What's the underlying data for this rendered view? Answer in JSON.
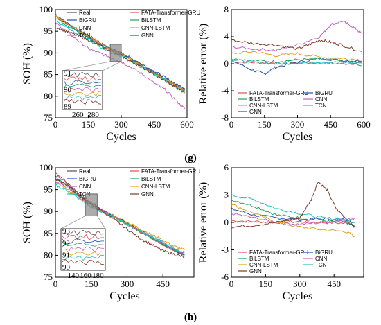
{
  "chart_data": [
    {
      "id": "g-soh",
      "type": "line",
      "xlabel": "Cycles",
      "ylabel": "SOH (%)",
      "xlim": [
        0,
        600
      ],
      "ylim": [
        75,
        100
      ],
      "xticks": [
        0,
        150,
        300,
        450,
        600
      ],
      "yticks": [
        75,
        80,
        85,
        90,
        95,
        100
      ],
      "legend": [
        "Real",
        "FATA-Transformer-GRU",
        "BiGRU",
        "BiLSTM",
        "CNN",
        "CNN-LSTM",
        "TCN",
        "GNN"
      ],
      "inset": {
        "xticks": [
          260,
          280
        ],
        "yticks": [
          89,
          90,
          91
        ]
      },
      "series": [
        {
          "name": "Real",
          "color": "#6b4a4a",
          "x": [
            0,
            50,
            100,
            150,
            200,
            250,
            300,
            350,
            400,
            450,
            500,
            550,
            590
          ],
          "y": [
            99,
            97,
            95.5,
            94,
            92.5,
            91,
            90,
            88.5,
            87,
            85.5,
            84,
            82.5,
            81.5
          ]
        },
        {
          "name": "FATA-Transformer-GRU",
          "color": "#e05050",
          "x": [
            0,
            50,
            100,
            150,
            200,
            250,
            300,
            350,
            400,
            450,
            500,
            550,
            590
          ],
          "y": [
            98.8,
            97,
            95.3,
            93.8,
            92.3,
            90.9,
            89.8,
            88.4,
            86.9,
            85.4,
            84,
            82.5,
            81.6
          ]
        },
        {
          "name": "BiGRU",
          "color": "#1f4fb0",
          "x": [
            0,
            50,
            100,
            150,
            200,
            250,
            300,
            350,
            400,
            450,
            500,
            550,
            590
          ],
          "y": [
            98.5,
            96.8,
            95.2,
            93.7,
            92.2,
            91,
            90,
            88.6,
            87.2,
            85.8,
            84.3,
            82.8,
            81.8
          ]
        },
        {
          "name": "BiLSTM",
          "color": "#20a060",
          "x": [
            0,
            50,
            100,
            150,
            200,
            250,
            300,
            350,
            400,
            450,
            500,
            550,
            590
          ],
          "y": [
            98.2,
            96.5,
            95,
            93.4,
            92,
            90.6,
            89.6,
            88.2,
            86.8,
            85.2,
            83.8,
            82.2,
            81.2
          ]
        },
        {
          "name": "CNN",
          "color": "#c060c0",
          "x": [
            0,
            50,
            100,
            150,
            200,
            250,
            300,
            350,
            400,
            450,
            500,
            550,
            590
          ],
          "y": [
            97,
            95,
            93,
            91,
            90,
            89,
            88,
            86.5,
            85,
            83,
            81.5,
            79,
            77
          ]
        },
        {
          "name": "CNN-LSTM",
          "color": "#e0a020",
          "x": [
            0,
            50,
            100,
            150,
            200,
            250,
            300,
            350,
            400,
            450,
            500,
            550,
            590
          ],
          "y": [
            98.6,
            96.9,
            95.4,
            93.9,
            92.4,
            90.9,
            89.7,
            88.3,
            86.8,
            85.3,
            83.9,
            82.4,
            81.4
          ]
        },
        {
          "name": "TCN",
          "color": "#20c0c0",
          "x": [
            0,
            50,
            100,
            150,
            200,
            250,
            300,
            350,
            400,
            450,
            500,
            550,
            590
          ],
          "y": [
            97.5,
            96,
            94.5,
            93,
            91.5,
            90.2,
            89.2,
            87.9,
            86.5,
            85,
            83.6,
            82,
            81
          ]
        },
        {
          "name": "GNN",
          "color": "#7a3a2a",
          "x": [
            0,
            50,
            100,
            150,
            200,
            250,
            300,
            350,
            400,
            450,
            500,
            550,
            590
          ],
          "y": [
            96,
            95,
            94,
            93,
            91.8,
            90.5,
            89.5,
            88,
            86.5,
            85,
            83.5,
            82,
            80.8
          ]
        }
      ]
    },
    {
      "id": "g-err",
      "type": "line",
      "xlabel": "Cycles",
      "ylabel": "Relative error (%)",
      "xlim": [
        0,
        600
      ],
      "ylim": [
        -8,
        8
      ],
      "xticks": [
        0,
        150,
        300,
        450,
        600
      ],
      "yticks": [
        -8,
        -4,
        0,
        4,
        8
      ],
      "legend": [
        "FATA-Transformer-GRU",
        "BiGRU",
        "BiLSTM",
        "CNN",
        "CNN-LSTM",
        "TCN",
        "GNN"
      ],
      "series": [
        {
          "name": "FATA-Transformer-GRU",
          "color": "#e05050",
          "x": [
            0,
            100,
            200,
            300,
            400,
            500,
            590
          ],
          "y": [
            0.3,
            0.2,
            0.1,
            0.2,
            0.1,
            0,
            0.1
          ]
        },
        {
          "name": "BiGRU",
          "color": "#1f4fb0",
          "x": [
            0,
            100,
            150,
            200,
            300,
            400,
            500,
            590
          ],
          "y": [
            0.5,
            -1,
            -1.5,
            -0.5,
            0.2,
            0.8,
            0.5,
            0.4
          ]
        },
        {
          "name": "BiLSTM",
          "color": "#20a060",
          "x": [
            0,
            100,
            200,
            300,
            400,
            500,
            590
          ],
          "y": [
            0.8,
            0.5,
            0.3,
            0.6,
            0.7,
            0.4,
            -0.3
          ]
        },
        {
          "name": "CNN",
          "color": "#c060c0",
          "x": [
            0,
            100,
            200,
            300,
            400,
            450,
            500,
            550,
            590
          ],
          "y": [
            2.5,
            2.2,
            2,
            2.8,
            4,
            5.8,
            6.3,
            5.5,
            4.5
          ]
        },
        {
          "name": "CNN-LSTM",
          "color": "#e0a020",
          "x": [
            0,
            100,
            200,
            300,
            400,
            500,
            590
          ],
          "y": [
            1.5,
            1.8,
            1.2,
            1.5,
            1,
            0.8,
            0.6
          ]
        },
        {
          "name": "TCN",
          "color": "#20c0c0",
          "x": [
            0,
            100,
            200,
            300,
            400,
            500,
            590
          ],
          "y": [
            0.6,
            0.2,
            0,
            0.1,
            0.3,
            0.2,
            0.2
          ]
        },
        {
          "name": "GNN",
          "color": "#7a3a2a",
          "x": [
            0,
            100,
            200,
            300,
            350,
            400,
            450,
            500,
            590
          ],
          "y": [
            3.5,
            3,
            2.8,
            2.2,
            2.8,
            3.5,
            3.2,
            2.8,
            1.8
          ]
        }
      ]
    },
    {
      "id": "h-soh",
      "type": "line",
      "xlabel": "Cycles",
      "ylabel": "SOH (%)",
      "xlim": [
        0,
        580
      ],
      "ylim": [
        75,
        100
      ],
      "xticks": [
        0,
        150,
        300,
        450
      ],
      "yticks": [
        75,
        80,
        85,
        90,
        95,
        100
      ],
      "legend": [
        "Real",
        "FATA-Transformer-GRU",
        "BiGRU",
        "BiLSTM",
        "CNN",
        "CNN-LSTM",
        "TCN",
        "GNN"
      ],
      "inset": {
        "xticks": [
          140,
          160,
          180
        ],
        "yticks": [
          90,
          91,
          92,
          93
        ]
      },
      "series": [
        {
          "name": "Real",
          "color": "#6b4a4a",
          "x": [
            0,
            50,
            100,
            150,
            200,
            250,
            300,
            350,
            400,
            450,
            500,
            540
          ],
          "y": [
            99,
            96.5,
            94,
            92,
            90.3,
            88.8,
            87.3,
            85.5,
            84,
            82.5,
            81,
            80
          ]
        },
        {
          "name": "FATA-Transformer-GRU",
          "color": "#e05050",
          "x": [
            0,
            50,
            100,
            150,
            200,
            250,
            300,
            350,
            400,
            450,
            500,
            540
          ],
          "y": [
            98.8,
            96.3,
            93.9,
            91.9,
            90.2,
            88.7,
            87.2,
            85.5,
            84,
            82.4,
            81,
            80.1
          ]
        },
        {
          "name": "BiGRU",
          "color": "#1f4fb0",
          "x": [
            0,
            50,
            100,
            150,
            200,
            250,
            300,
            350,
            400,
            450,
            500,
            540
          ],
          "y": [
            98,
            96,
            93.8,
            91.8,
            90.2,
            88.8,
            87.4,
            85.8,
            84.3,
            82.8,
            81.2,
            80.2
          ]
        },
        {
          "name": "BiLSTM",
          "color": "#20a060",
          "x": [
            0,
            50,
            100,
            150,
            200,
            250,
            300,
            350,
            400,
            450,
            500,
            540
          ],
          "y": [
            97.5,
            95.8,
            93.5,
            91.6,
            90,
            88.6,
            87.2,
            85.6,
            84.1,
            82.6,
            81.1,
            80.3
          ]
        },
        {
          "name": "CNN",
          "color": "#c060c0",
          "x": [
            0,
            50,
            100,
            150,
            200,
            250,
            300,
            350,
            400,
            450,
            500,
            540
          ],
          "y": [
            97,
            95.5,
            93.2,
            91.5,
            90,
            88.5,
            87,
            85.6,
            84.2,
            82.8,
            81.5,
            80.5
          ]
        },
        {
          "name": "CNN-LSTM",
          "color": "#e0a020",
          "x": [
            0,
            50,
            100,
            150,
            200,
            250,
            300,
            350,
            400,
            450,
            500,
            540
          ],
          "y": [
            96.5,
            95.2,
            93,
            91.3,
            90,
            88.8,
            87.6,
            86.2,
            84.8,
            83.4,
            82,
            81.2
          ]
        },
        {
          "name": "TCN",
          "color": "#20c0c0",
          "x": [
            0,
            50,
            100,
            150,
            200,
            250,
            300,
            350,
            400,
            450,
            500,
            540
          ],
          "y": [
            96,
            94.8,
            92.8,
            91,
            89.7,
            88.4,
            87.1,
            85.8,
            84.3,
            82.9,
            81.5,
            80.6
          ]
        },
        {
          "name": "GNN",
          "color": "#7a3a2a",
          "x": [
            0,
            50,
            100,
            150,
            200,
            250,
            300,
            350,
            400,
            450,
            500,
            540
          ],
          "y": [
            97.5,
            96,
            93.5,
            91.5,
            90,
            88,
            86,
            84,
            82.5,
            81,
            80.2,
            79.6
          ]
        }
      ]
    },
    {
      "id": "h-err",
      "type": "line",
      "xlabel": "Cycles",
      "ylabel": "Relative error (%)",
      "xlim": [
        0,
        580
      ],
      "ylim": [
        -6,
        6
      ],
      "xticks": [
        0,
        150,
        300,
        450
      ],
      "yticks": [
        -6,
        -3,
        0,
        3,
        6
      ],
      "legend": [
        "FATA-Transformer-GRU",
        "BiGRU",
        "BiLSTM",
        "CNN",
        "CNN-LSTM",
        "TCN",
        "GNN"
      ],
      "series": [
        {
          "name": "FATA-Transformer-GRU",
          "color": "#e05050",
          "x": [
            0,
            100,
            200,
            300,
            400,
            500,
            540
          ],
          "y": [
            0.2,
            0.1,
            0,
            0.1,
            0,
            -0.1,
            0
          ]
        },
        {
          "name": "BiGRU",
          "color": "#1f4fb0",
          "x": [
            0,
            100,
            200,
            300,
            400,
            500,
            540
          ],
          "y": [
            1.5,
            0.8,
            0.5,
            0.3,
            0.4,
            0.3,
            -0.5
          ]
        },
        {
          "name": "BiLSTM",
          "color": "#20a060",
          "x": [
            0,
            100,
            200,
            300,
            400,
            500,
            540
          ],
          "y": [
            2.5,
            1.8,
            0.8,
            0.5,
            0.2,
            0,
            -0.5
          ]
        },
        {
          "name": "CNN",
          "color": "#c060c0",
          "x": [
            0,
            100,
            200,
            300,
            400,
            500,
            540
          ],
          "y": [
            1,
            0.5,
            0,
            -0.2,
            0,
            0.3,
            0.5
          ]
        },
        {
          "name": "CNN-LSTM",
          "color": "#e0a020",
          "x": [
            0,
            100,
            200,
            300,
            400,
            500,
            540
          ],
          "y": [
            2,
            1,
            0,
            -0.5,
            -0.8,
            -1,
            -1.5
          ]
        },
        {
          "name": "TCN",
          "color": "#20c0c0",
          "x": [
            0,
            100,
            200,
            300,
            400,
            500,
            540
          ],
          "y": [
            3,
            2.5,
            1.5,
            1,
            0.5,
            0.3,
            0
          ]
        },
        {
          "name": "GNN",
          "color": "#7a3a2a",
          "x": [
            0,
            100,
            200,
            300,
            350,
            380,
            420,
            460,
            500,
            540
          ],
          "y": [
            -0.5,
            -0.3,
            0,
            0.5,
            2.5,
            4.5,
            3.5,
            1.5,
            0.5,
            -0.5
          ]
        }
      ]
    }
  ],
  "panel_labels": {
    "g": "(g)",
    "h": "(h)"
  }
}
